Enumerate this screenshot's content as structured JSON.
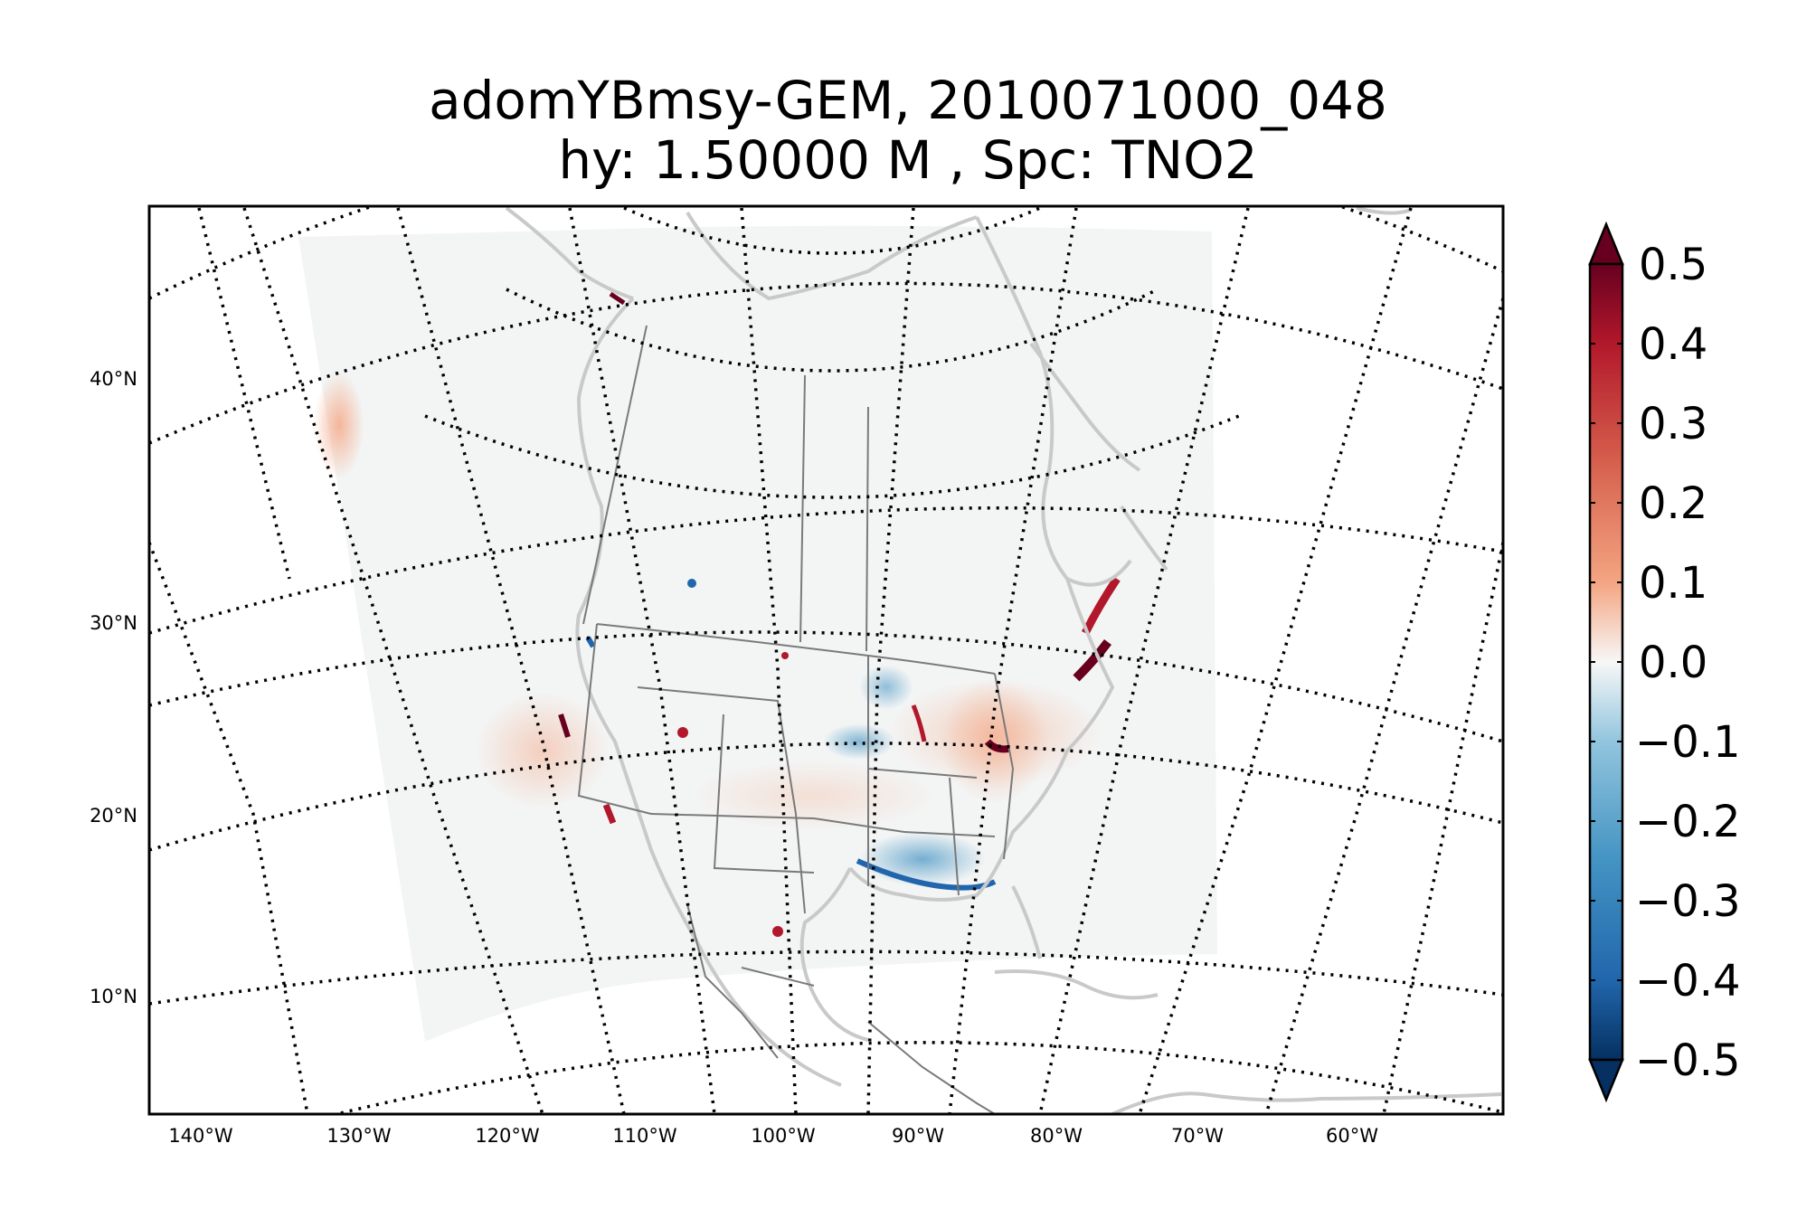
{
  "title": {
    "line1": "adomYBmsy-GEM, 2010071000_048",
    "line2": "hy: 1.50000 M , Spc: TNO2"
  },
  "map": {
    "projection": "conic",
    "graticule_style": "dotted",
    "lat_labels": [
      "40°N",
      "30°N",
      "20°N",
      "10°N"
    ],
    "lon_labels": [
      "140°W",
      "130°W",
      "120°W",
      "110°W",
      "100°W",
      "90°W",
      "80°W",
      "70°W",
      "60°W"
    ]
  },
  "colorbar": {
    "colormap": "RdBu_r",
    "extend": "both",
    "ticks": [
      "0.5",
      "0.4",
      "0.3",
      "0.2",
      "0.1",
      "0.0",
      "−0.1",
      "−0.2",
      "−0.3",
      "−0.4",
      "−0.5"
    ],
    "min": -0.5,
    "max": 0.5,
    "colors": {
      "top": "#67001f",
      "upper": "#b2182b",
      "mid_upper": "#f4a582",
      "center": "#f7f7f7",
      "mid_lower": "#92c5de",
      "lower": "#2166ac",
      "bottom": "#053061"
    }
  }
}
